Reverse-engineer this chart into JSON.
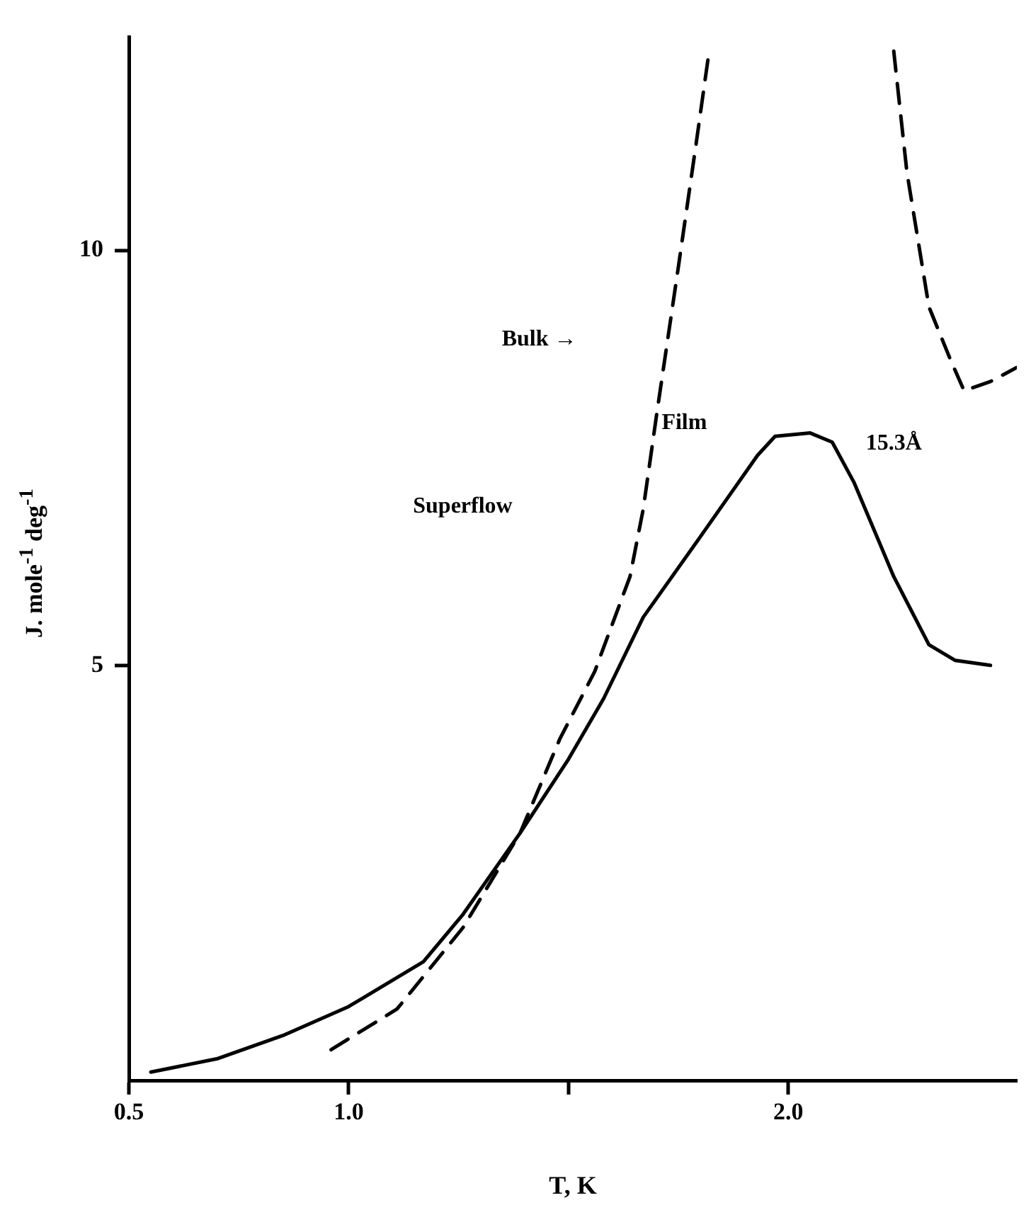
{
  "chart_data": {
    "type": "line",
    "xlabel": "T, K",
    "ylabel": "J. mole$^{-1}$ deg$^{-1}$",
    "xlim": [
      0.5,
      2.52
    ],
    "ylim": [
      0,
      12.57
    ],
    "xticks": [
      {
        "value": 0.5,
        "label": "0.5"
      },
      {
        "value": 1.0,
        "label": "1.0"
      },
      {
        "value": 1.5,
        "label": null
      },
      {
        "value": 2.0,
        "label": "2.0"
      }
    ],
    "yticks": [
      5,
      10
    ],
    "grid": false,
    "legend": false,
    "marker": "none",
    "series": [
      {
        "color": "#000000",
        "line_style": "solid",
        "x": [
          0.55,
          0.7,
          0.85,
          1.0,
          1.17,
          1.26,
          1.39,
          1.5,
          1.58,
          1.67,
          1.8,
          1.93,
          1.97,
          2.05,
          2.1,
          2.15,
          2.24,
          2.32,
          2.38,
          2.46
        ],
        "values": [
          0.1,
          0.26,
          0.54,
          0.89,
          1.43,
          2.0,
          2.98,
          3.87,
          4.6,
          5.58,
          6.55,
          7.53,
          7.76,
          7.8,
          7.69,
          7.2,
          6.07,
          5.25,
          5.06,
          5.0
        ]
      },
      {
        "color": "#000000",
        "line_style": "dashed",
        "x": [
          0.96,
          1.11,
          1.26,
          1.39,
          1.48,
          1.56,
          1.64,
          1.67,
          1.7,
          1.75,
          1.79,
          1.82,
          2.0,
          2.24,
          2.27,
          2.32,
          2.37,
          2.4,
          2.46,
          2.52
        ],
        "values": [
          0.37,
          0.86,
          1.84,
          2.98,
          4.11,
          4.93,
          6.07,
          6.88,
          8.0,
          9.8,
          11.27,
          12.4,
          null,
          12.4,
          10.94,
          9.32,
          8.67,
          8.31,
          8.42,
          8.59
        ]
      }
    ],
    "annotations": [
      "Bulk →",
      "Film",
      "15.3Å",
      "Superflow"
    ]
  }
}
